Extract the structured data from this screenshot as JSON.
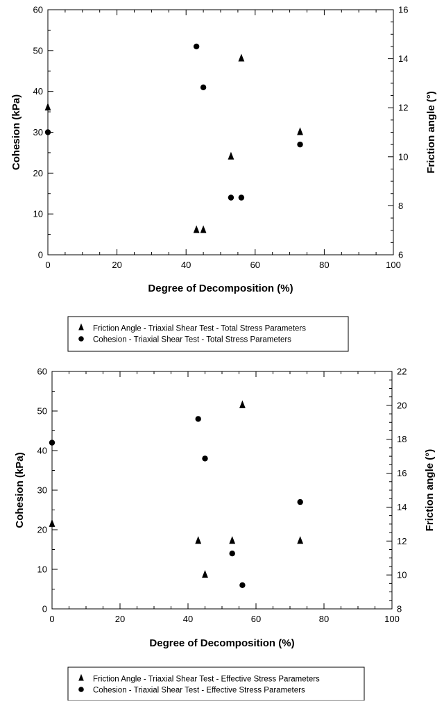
{
  "chart_data": [
    {
      "type": "scatter",
      "title": "",
      "xlabel": "Degree of Decomposition (%)",
      "ylabel_left": "Cohesion (kPa)",
      "ylabel_right": "Friction angle (°)",
      "xlim": [
        0,
        100
      ],
      "ylim_left": [
        0,
        60
      ],
      "ylim_right": [
        6,
        16
      ],
      "x_ticks": [
        0,
        20,
        40,
        60,
        80,
        100
      ],
      "y_left_ticks": [
        0,
        10,
        20,
        30,
        40,
        50,
        60
      ],
      "y_right_ticks": [
        6,
        8,
        10,
        12,
        14,
        16
      ],
      "grid": false,
      "legend_position": "bottom",
      "series": [
        {
          "name": "Friction Angle - Triaxial Shear Test - Total Stress Parameters",
          "marker": "triangle",
          "axis": "right",
          "points": [
            [
              0,
              12
            ],
            [
              43,
              7
            ],
            [
              45,
              7
            ],
            [
              53,
              10
            ],
            [
              56,
              14
            ],
            [
              73,
              11
            ]
          ]
        },
        {
          "name": "Cohesion - Triaxial Shear Test - Total Stress Parameters",
          "marker": "circle",
          "axis": "left",
          "points": [
            [
              0,
              30
            ],
            [
              43,
              51
            ],
            [
              45,
              41
            ],
            [
              53,
              14
            ],
            [
              56,
              14
            ],
            [
              73,
              27
            ]
          ]
        }
      ]
    },
    {
      "type": "scatter",
      "title": "",
      "xlabel": "Degree of Decomposition (%)",
      "ylabel_left": "Cohesion (kPa)",
      "ylabel_right": "Friction angle (°)",
      "xlim": [
        0,
        100
      ],
      "ylim_left": [
        0,
        60
      ],
      "ylim_right": [
        8,
        22
      ],
      "x_ticks": [
        0,
        20,
        40,
        60,
        80,
        100
      ],
      "y_left_ticks": [
        0,
        10,
        20,
        30,
        40,
        50,
        60
      ],
      "y_right_ticks": [
        8,
        10,
        12,
        14,
        16,
        18,
        20,
        22
      ],
      "grid": false,
      "legend_position": "bottom",
      "series": [
        {
          "name": "Friction Angle - Triaxial Shear Test - Effective Stress Parameters",
          "marker": "triangle",
          "axis": "right",
          "points": [
            [
              0,
              13
            ],
            [
              43,
              12
            ],
            [
              45,
              10
            ],
            [
              53,
              12
            ],
            [
              56,
              20
            ],
            [
              73,
              12
            ]
          ]
        },
        {
          "name": "Cohesion - Triaxial Shear Test - Effective Stress Parameters",
          "marker": "circle",
          "axis": "left",
          "points": [
            [
              0,
              42
            ],
            [
              43,
              48
            ],
            [
              45,
              38
            ],
            [
              53,
              14
            ],
            [
              56,
              6
            ],
            [
              73,
              27
            ]
          ]
        }
      ]
    }
  ]
}
